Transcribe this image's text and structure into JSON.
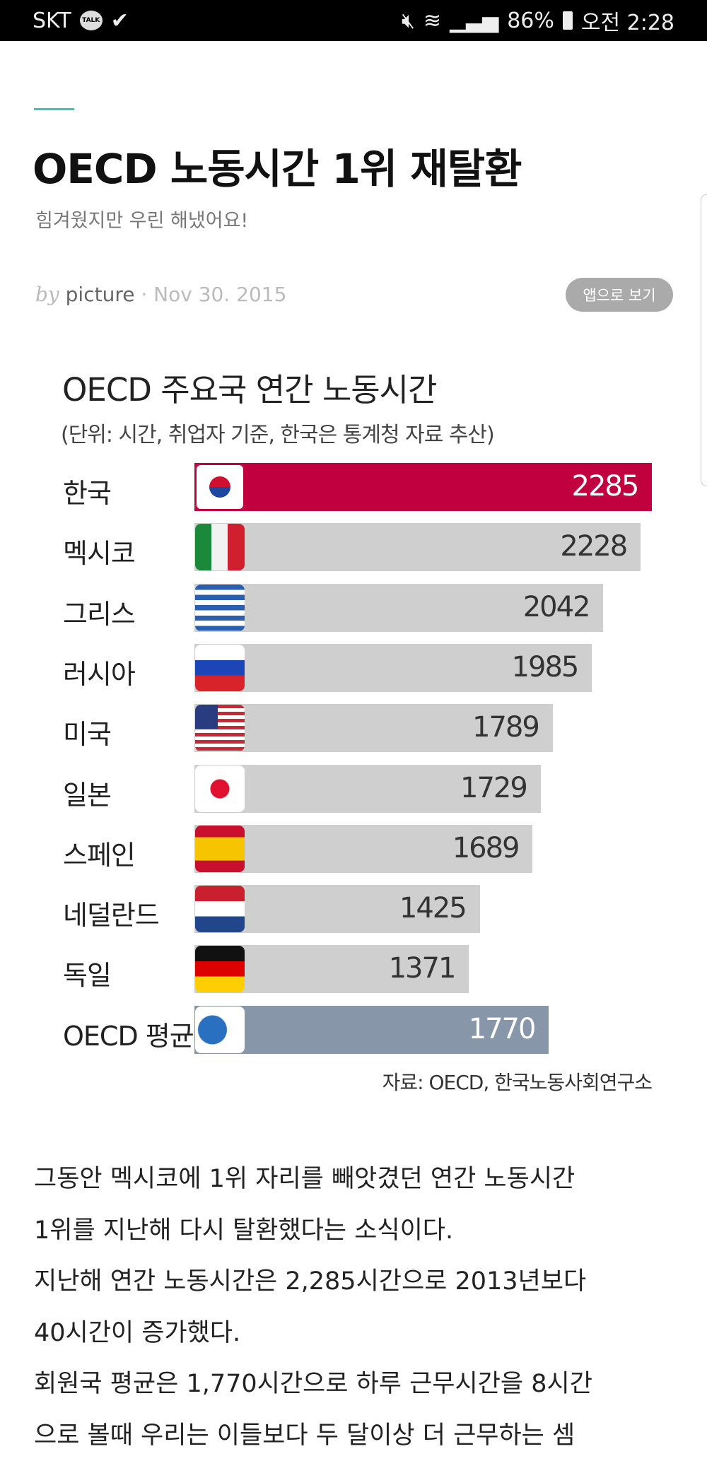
{
  "status_bar": {
    "carrier": "SKT",
    "talk_badge": "TALK",
    "battery": "86%",
    "time": "오전 2:28",
    "icons": [
      "kakaotalk-icon",
      "check-download-icon",
      "mute-icon",
      "wifi-icon",
      "signal-icon",
      "battery-icon"
    ]
  },
  "article": {
    "title": "OECD 노동시간 1위 재탈환",
    "subtitle": "힘겨웠지만 우린 해냈어요!",
    "by": "by",
    "author": "picture",
    "date": "· Nov 30. 2015",
    "app_button": "앱으로 보기",
    "accent_color": "#3cc3b5",
    "body_lines": [
      "그동안 멕시코에 1위 자리를 빼앗겼던 연간 노동시간",
      "1위를 지난해 다시 탈환했다는 소식이다.",
      "지난해 연간 노동시간은 2,285시간으로 2013년보다",
      "40시간이 증가했다.",
      "회원국 평균은 1,770시간으로 하루 근무시간을 8시간",
      "으로 볼때 우리는 이들보다 두 달이상 더 근무하는 셈"
    ]
  },
  "chart_data": {
    "type": "bar",
    "orientation": "horizontal",
    "title": "OECD 주요국 연간 노동시간",
    "subtitle": "(단위: 시간, 취업자 기준, 한국은 통계청 자료 추산)",
    "source": "자료: OECD, 한국노동사회연구소",
    "categories": [
      "한국",
      "멕시코",
      "그리스",
      "러시아",
      "미국",
      "일본",
      "스페인",
      "네덜란드",
      "독일",
      "OECD 평균"
    ],
    "values": [
      2285,
      2228,
      2042,
      1985,
      1789,
      1729,
      1689,
      1425,
      1371,
      1770
    ],
    "flags": [
      "korea",
      "mexico",
      "greece",
      "russia",
      "usa",
      "japan",
      "spain",
      "netherlands",
      "germany",
      "oecd"
    ],
    "colors": {
      "highlight": "#c0003f",
      "default": "#cfcfcf",
      "average": "#8896aa"
    }
  }
}
